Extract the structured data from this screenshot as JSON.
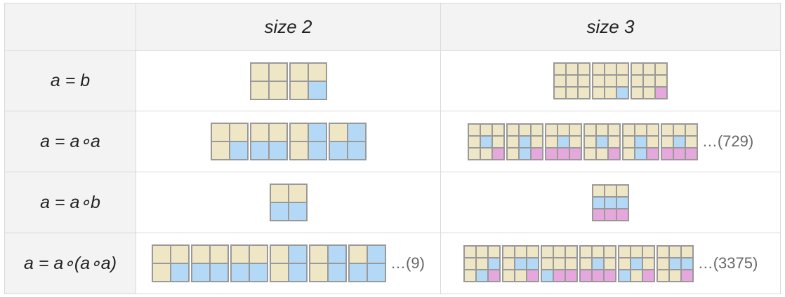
{
  "header": {
    "corner": "",
    "col1": "size 2",
    "col2": "size 3"
  },
  "colors": {
    "T": "#efe6c6",
    "B": "#b4d9f6",
    "P": "#e6a7dc",
    "border": "#999999"
  },
  "rows": [
    {
      "label": "a = b",
      "size2": {
        "cell": 24,
        "tiles": [
          [
            "TT",
            "TT"
          ],
          [
            "TT",
            "TB"
          ]
        ],
        "more": ""
      },
      "size3": {
        "cell": 15,
        "tiles": [
          [
            "TTT",
            "TTT",
            "TTT"
          ],
          [
            "TTT",
            "TTT",
            "TTB"
          ],
          [
            "TTT",
            "TTT",
            "TTP"
          ]
        ],
        "more": ""
      }
    },
    {
      "label": "a = a∘a",
      "size2": {
        "cell": 24,
        "tiles": [
          [
            "TT",
            "TB"
          ],
          [
            "TT",
            "BB"
          ],
          [
            "TB",
            "TB"
          ],
          [
            "TB",
            "BB"
          ]
        ],
        "more": ""
      },
      "size3": {
        "cell": 15,
        "tiles": [
          [
            "TTT",
            "TBT",
            "TTP"
          ],
          [
            "TTT",
            "TBT",
            "TBP"
          ],
          [
            "TTT",
            "TBT",
            "PPP"
          ],
          [
            "TTT",
            "TBT",
            "TTP"
          ],
          [
            "TTT",
            "TBT",
            "TBP"
          ],
          [
            "TTT",
            "TBT",
            "PPP"
          ]
        ],
        "more": "…(729)"
      }
    },
    {
      "label": "a = a∘b",
      "size2": {
        "cell": 24,
        "tiles": [
          [
            "TT",
            "BB"
          ]
        ],
        "more": ""
      },
      "size3": {
        "cell": 15,
        "tiles": [
          [
            "TTT",
            "BBB",
            "PPP"
          ]
        ],
        "more": ""
      }
    },
    {
      "label": "a = a∘(a∘a)",
      "size2": {
        "cell": 24,
        "tiles": [
          [
            "TT",
            "TB"
          ],
          [
            "TT",
            "BB"
          ],
          [
            "TT",
            "BB"
          ],
          [
            "TB",
            "TB"
          ],
          [
            "TB",
            "TB"
          ],
          [
            "TB",
            "BB"
          ]
        ],
        "more": "…(9)"
      },
      "size3": {
        "cell": 15,
        "tiles": [
          [
            "TTT",
            "TTB",
            "TBP"
          ],
          [
            "TTT",
            "TBB",
            "TTP"
          ],
          [
            "TTT",
            "TTT",
            "BPP"
          ],
          [
            "TTT",
            "TBT",
            "PPP"
          ],
          [
            "TTT",
            "TBT",
            "BTP"
          ],
          [
            "TTT",
            "TBB",
            "TTP"
          ]
        ],
        "more": "…(3375)"
      }
    }
  ]
}
